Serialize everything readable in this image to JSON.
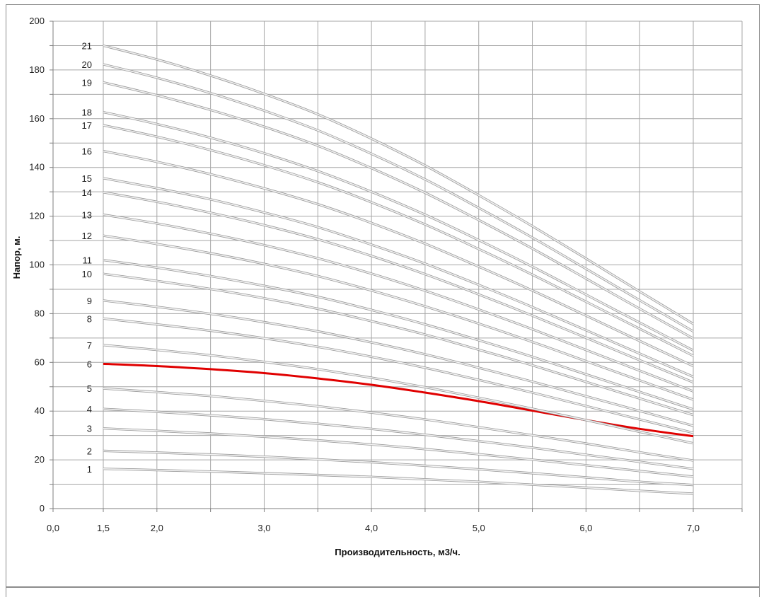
{
  "chart_data": {
    "type": "line",
    "title": "",
    "xlabel": "Производительность, м3/ч.",
    "ylabel": "Напор, м.",
    "xlim": [
      0.0,
      7.0
    ],
    "ylim": [
      0,
      200
    ],
    "x_ticks": [
      "0,0",
      "1,5",
      "2,0",
      "3,0",
      "4,0",
      "5,0",
      "6,0",
      "7,0"
    ],
    "y_ticks": [
      "0",
      "20",
      "40",
      "60",
      "80",
      "100",
      "120",
      "140",
      "160",
      "180",
      "200"
    ],
    "grid": true,
    "highlight_series": "6",
    "highlight_color": "#e00000",
    "curve_color": "#c8c8c8",
    "x": [
      1.5,
      2.0,
      2.5,
      3.0,
      3.5,
      4.0,
      4.5,
      5.0,
      5.5,
      6.0,
      6.5,
      7.0
    ],
    "series": [
      {
        "name": "1",
        "values": [
          16.3,
          15.8,
          15.2,
          14.5,
          13.8,
          13.0,
          12.0,
          11.0,
          9.8,
          8.6,
          7.3,
          6.1
        ]
      },
      {
        "name": "2",
        "values": [
          23.7,
          23.0,
          22.2,
          21.3,
          20.2,
          19.0,
          17.6,
          16.1,
          14.5,
          12.8,
          11.0,
          9.7
        ]
      },
      {
        "name": "3",
        "values": [
          32.9,
          31.9,
          30.8,
          29.5,
          28.0,
          26.3,
          24.4,
          22.3,
          20.1,
          17.8,
          15.4,
          13.1
        ]
      },
      {
        "name": "4",
        "values": [
          40.9,
          39.7,
          38.3,
          36.7,
          34.8,
          32.7,
          30.3,
          27.7,
          25.0,
          22.1,
          19.2,
          16.3
        ]
      },
      {
        "name": "5",
        "values": [
          49.3,
          47.8,
          46.2,
          44.2,
          42.0,
          39.4,
          36.6,
          33.4,
          30.1,
          26.7,
          23.1,
          19.7
        ]
      },
      {
        "name": "6",
        "values": [
          59.4,
          58.5,
          57.2,
          55.6,
          53.4,
          50.8,
          47.6,
          44.1,
          40.2,
          36.3,
          32.7,
          29.7
        ]
      },
      {
        "name": "7",
        "values": [
          67.1,
          65.1,
          62.9,
          60.2,
          57.2,
          53.7,
          49.8,
          45.5,
          41.0,
          36.3,
          31.5,
          26.8
        ]
      },
      {
        "name": "8",
        "values": [
          78.0,
          75.6,
          73.0,
          69.9,
          66.4,
          62.3,
          57.8,
          52.8,
          47.6,
          42.1,
          36.6,
          31.1
        ]
      },
      {
        "name": "9",
        "values": [
          85.4,
          82.8,
          79.9,
          76.5,
          72.7,
          68.2,
          63.3,
          57.8,
          52.1,
          46.1,
          40.1,
          34.0
        ]
      },
      {
        "name": "10",
        "values": [
          96.3,
          93.4,
          90.1,
          86.3,
          82.0,
          76.9,
          71.4,
          65.2,
          58.8,
          52.0,
          45.2,
          38.4
        ]
      },
      {
        "name": "11",
        "values": [
          102.0,
          98.9,
          95.4,
          91.4,
          86.9,
          81.5,
          75.6,
          69.1,
          62.3,
          55.1,
          47.9,
          40.7
        ]
      },
      {
        "name": "12",
        "values": [
          112.0,
          108.6,
          104.8,
          100.4,
          95.4,
          89.5,
          83.0,
          75.9,
          68.4,
          60.5,
          52.6,
          44.7
        ]
      },
      {
        "name": "13",
        "values": [
          120.6,
          117.0,
          112.8,
          108.1,
          102.7,
          96.4,
          89.4,
          81.7,
          73.6,
          65.1,
          56.6,
          48.1
        ]
      },
      {
        "name": "14",
        "values": [
          129.8,
          125.9,
          121.4,
          116.3,
          110.5,
          103.7,
          96.2,
          87.9,
          79.2,
          70.1,
          60.9,
          51.8
        ]
      },
      {
        "name": "15",
        "values": [
          135.6,
          131.5,
          126.9,
          121.5,
          115.5,
          108.3,
          100.5,
          91.8,
          82.7,
          73.2,
          63.6,
          54.1
        ]
      },
      {
        "name": "16",
        "values": [
          146.7,
          142.3,
          137.2,
          131.4,
          124.9,
          117.2,
          108.7,
          99.3,
          89.5,
          79.2,
          68.8,
          58.5
        ]
      },
      {
        "name": "17",
        "values": [
          157.3,
          152.6,
          147.1,
          140.9,
          133.9,
          125.7,
          116.6,
          106.5,
          96.0,
          84.9,
          73.8,
          62.7
        ]
      },
      {
        "name": "18",
        "values": [
          162.7,
          157.8,
          152.2,
          145.8,
          138.5,
          130.0,
          120.6,
          110.2,
          99.3,
          87.8,
          76.3,
          64.9
        ]
      },
      {
        "name": "19",
        "values": [
          174.9,
          169.6,
          163.6,
          156.7,
          148.9,
          139.7,
          129.6,
          118.4,
          106.7,
          94.4,
          82.0,
          69.8
        ]
      },
      {
        "name": "20",
        "values": [
          182.3,
          176.8,
          170.5,
          163.3,
          155.2,
          145.6,
          135.1,
          123.4,
          111.2,
          98.4,
          85.5,
          72.7
        ]
      },
      {
        "name": "21",
        "values": [
          190.0,
          184.3,
          177.7,
          170.2,
          161.8,
          151.8,
          140.8,
          128.6,
          115.9,
          102.6,
          89.1,
          75.8
        ]
      }
    ]
  }
}
